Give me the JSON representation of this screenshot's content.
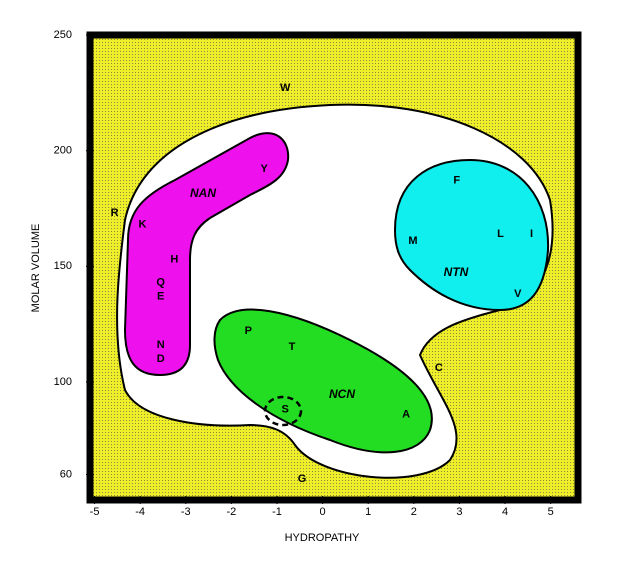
{
  "chart_data": {
    "type": "scatter",
    "xlabel": "HYDROPATHY",
    "ylabel": "MOLAR VOLUME",
    "labels": [
      "W",
      "Y",
      "R",
      "K",
      "H",
      "Q",
      "E",
      "N",
      "D",
      "F",
      "M",
      "L",
      "I",
      "V",
      "P",
      "T",
      "S",
      "A",
      "C",
      "G"
    ],
    "x": [
      -0.82,
      -1.28,
      -4.56,
      -3.95,
      -3.25,
      -3.55,
      -3.55,
      -3.55,
      -3.55,
      2.94,
      1.98,
      3.9,
      4.58,
      4.28,
      -1.63,
      -0.67,
      -0.82,
      1.83,
      2.55,
      -0.45
    ],
    "y": [
      227,
      192,
      173,
      168,
      153,
      143,
      137,
      116,
      110,
      187,
      161,
      164,
      164,
      138,
      122,
      115,
      88,
      86,
      106,
      58
    ],
    "regions": [
      "NAN",
      "NTN",
      "NCN"
    ],
    "xlim": [
      -5.1,
      5.6
    ],
    "xticks": [
      -5,
      -4,
      -3,
      -2,
      -1,
      0,
      1,
      2,
      3,
      4,
      5
    ],
    "ylim": [
      49,
      250
    ],
    "yticks": [
      60,
      100,
      150,
      200,
      250
    ],
    "background": "#eeee2a"
  }
}
